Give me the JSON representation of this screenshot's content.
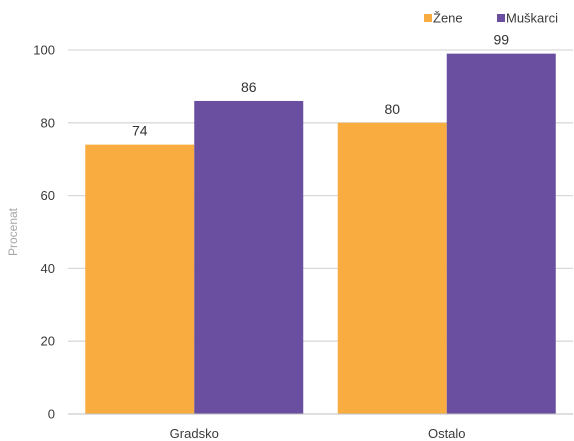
{
  "chart_data": {
    "type": "bar",
    "categories": [
      "Gradsko",
      "Ostalo"
    ],
    "series": [
      {
        "name": "Žene",
        "values": [
          74,
          80
        ],
        "color": "#f9ad40"
      },
      {
        "name": "Muškarci",
        "values": [
          86,
          99
        ],
        "color": "#6a4fa0"
      }
    ],
    "ylabel": "Procenat",
    "ylim": [
      0,
      100
    ],
    "yticks": [
      0,
      20,
      40,
      60,
      80,
      100
    ],
    "grid": true,
    "legend_position": "top-right",
    "data_labels": true
  }
}
